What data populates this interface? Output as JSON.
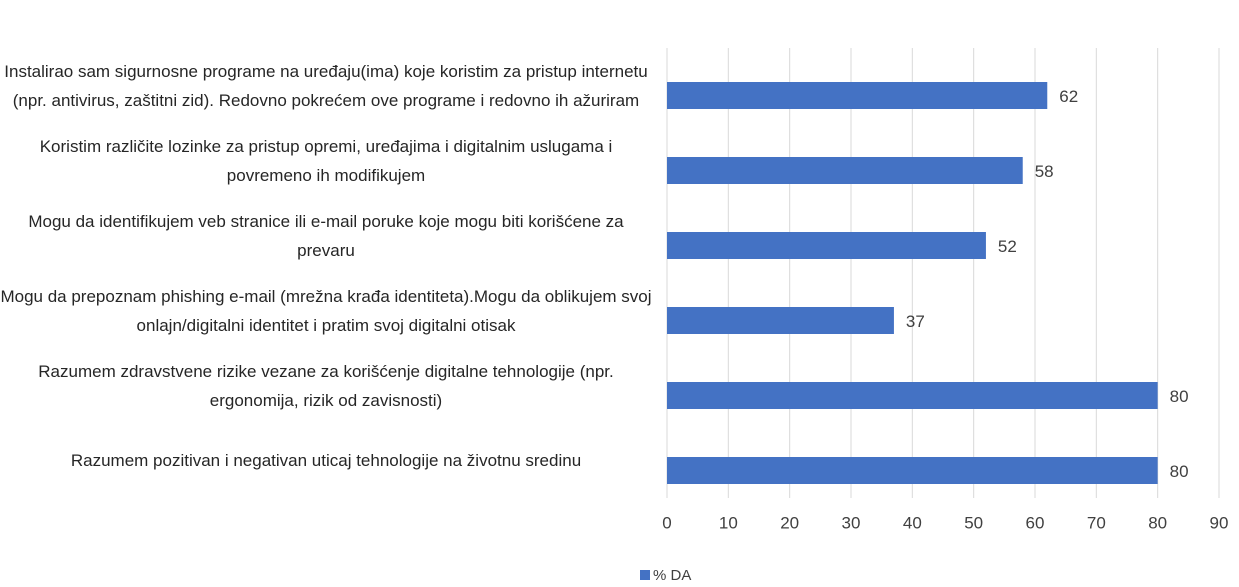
{
  "chart_data": {
    "type": "bar",
    "orientation": "horizontal",
    "categories": [
      "Instalirao sam sigurnosne programe na uređaju(ima) koje koristim za pristup internetu (npr. antivirus, zaštitni zid). Redovno pokrećem ove programe i redovno ih ažuriram",
      "Koristim različite lozinke za pristup opremi, uređajima i digitalnim uslugama i povremeno ih modifikujem",
      "Mogu da identifikujem veb stranice ili e-mail poruke koje mogu biti korišćene za prevaru",
      "Mogu da prepoznam phishing e-mail (mrežna krađa identiteta).Mogu da oblikujem svoj onlajn/digitalni identitet i pratim svoj digitalni otisak",
      "Razumem zdravstvene rizike vezane za korišćenje digitalne tehnologije (npr. ergonomija, rizik od zavisnosti)",
      "Razumem pozitivan i negativan uticaj tehnologije na životnu sredinu"
    ],
    "series": [
      {
        "name": "% DA",
        "color": "#4472c4",
        "values": [
          62,
          58,
          52,
          37,
          80,
          80
        ]
      }
    ],
    "xlim": [
      0,
      90
    ],
    "xticks": [
      0,
      10,
      20,
      30,
      40,
      50,
      60,
      70,
      80,
      90
    ],
    "grid": true,
    "legend": "bottom"
  }
}
